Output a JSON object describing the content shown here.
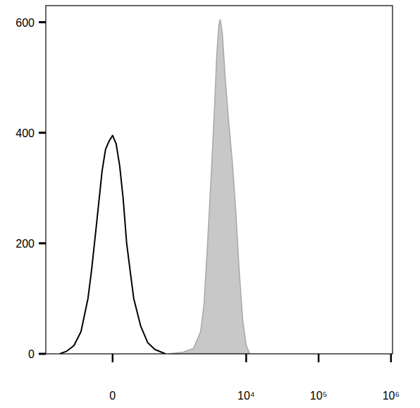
{
  "chart_data": {
    "type": "histogram",
    "xlim": [
      -1180,
      1050000
    ],
    "ylim": [
      0,
      630
    ],
    "xticks": [
      0,
      {
        "value": 10000,
        "label": "10⁴"
      },
      {
        "value": 100000,
        "label": "10⁵"
      },
      {
        "value": 1000000,
        "label": "10⁶"
      }
    ],
    "yticks": [
      0,
      200,
      400,
      600
    ],
    "grid": false,
    "series": [
      {
        "type": "line",
        "color": "#000000",
        "x": [
          -739,
          -579,
          -447,
          -339,
          -248,
          -207,
          -168,
          -132,
          -98,
          -65,
          -32,
          0,
          32,
          65,
          98,
          132,
          168,
          207,
          291,
          391,
          510,
          739
        ],
        "values": [
          0,
          5,
          15,
          40,
          100,
          150,
          210,
          270,
          330,
          370,
          385,
          395,
          380,
          340,
          280,
          200,
          150,
          100,
          50,
          20,
          8,
          0
        ]
      },
      {
        "type": "area",
        "color": "#c8c8c8",
        "x": [
          833,
          1324,
          1868,
          2334,
          2612,
          2923,
          3271,
          3661,
          3915,
          4187,
          4379,
          4685,
          5123,
          5729,
          6409,
          7170,
          8017,
          8966,
          10033,
          11214
        ],
        "values": [
          0,
          3,
          10,
          40,
          90,
          200,
          320,
          450,
          540,
          595,
          605,
          580,
          500,
          420,
          350,
          260,
          150,
          60,
          15,
          0
        ]
      }
    ]
  }
}
